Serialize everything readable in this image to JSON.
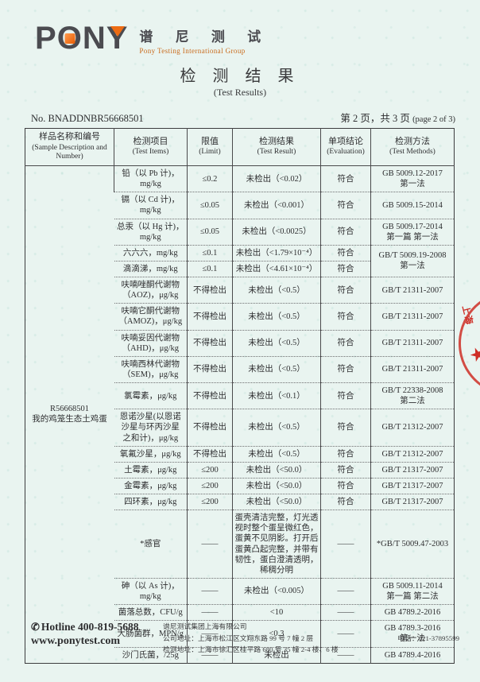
{
  "header": {
    "logo_text": "PONY",
    "logo_cn": "谱 尼 测 试",
    "logo_en": "Pony Testing International Group",
    "title_cn": "检 测 结 果",
    "title_en": "(Test Results)",
    "report_no": "No. BNADDNBR56668501",
    "page_info_cn": "第 2 页，共 3 页 ",
    "page_info_en": "(page 2 of 3)"
  },
  "table": {
    "headers": [
      {
        "cn": "样品名称和编号",
        "en": "(Sample Description and Number)"
      },
      {
        "cn": "检测项目",
        "en": "(Test Items)"
      },
      {
        "cn": "限值",
        "en": "(Limit)"
      },
      {
        "cn": "检测结果",
        "en": "(Test Result)"
      },
      {
        "cn": "单项结论",
        "en": "(Evaluation)"
      },
      {
        "cn": "检测方法",
        "en": "(Test Methods)"
      }
    ],
    "sample": "R56668501\n我的鸡笼生态土鸡蛋",
    "rows": [
      {
        "item": "铅（以 Pb 计)，\nmg/kg",
        "limit": "≤0.2",
        "result": "未检出（<0.02）",
        "evaluation": "符合",
        "method": "GB 5009.12-2017\n第一法"
      },
      {
        "item": "镉（以 Cd 计)，\nmg/kg",
        "limit": "≤0.05",
        "result": "未检出（<0.001）",
        "evaluation": "符合",
        "method": "GB 5009.15-2014"
      },
      {
        "item": "总汞（以 Hg 计)，\nmg/kg",
        "limit": "≤0.05",
        "result": "未检出（<0.0025）",
        "evaluation": "符合",
        "method": "GB 5009.17-2014\n第一篇 第一法"
      },
      {
        "item": "六六六，mg/kg",
        "limit": "≤0.1",
        "result": "未检出（<1.79×10⁻⁴）",
        "evaluation": "符合",
        "method": "GB/T 5009.19-2008\n第一法",
        "method_rowspan": 2
      },
      {
        "item": "滴滴涕，mg/kg",
        "limit": "≤0.1",
        "result": "未检出（<4.61×10⁻⁴）",
        "evaluation": "符合",
        "method": null
      },
      {
        "item": "呋喃唑酮代谢物\n（AOZ)，μg/kg",
        "limit": "不得检出",
        "result": "未检出（<0.5）",
        "evaluation": "符合",
        "method": "GB/T 21311-2007"
      },
      {
        "item": "呋喃它酮代谢物\n（AMOZ)，μg/kg",
        "limit": "不得检出",
        "result": "未检出（<0.5）",
        "evaluation": "符合",
        "method": "GB/T 21311-2007"
      },
      {
        "item": "呋喃妥因代谢物\n（AHD)，μg/kg",
        "limit": "不得检出",
        "result": "未检出（<0.5）",
        "evaluation": "符合",
        "method": "GB/T 21311-2007"
      },
      {
        "item": "呋喃西林代谢物\n（SEM)，μg/kg",
        "limit": "不得检出",
        "result": "未检出（<0.5）",
        "evaluation": "符合",
        "method": "GB/T 21311-2007"
      },
      {
        "item": "氯霉素，μg/kg",
        "limit": "不得检出",
        "result": "未检出（<0.1）",
        "evaluation": "符合",
        "method": "GB/T 22338-2008\n第二法"
      },
      {
        "item": "恩诺沙星(以恩诺\n沙星与环丙沙星\n之和计)，μg/kg",
        "limit": "不得检出",
        "result": "未检出（<0.5）",
        "evaluation": "符合",
        "method": "GB/T 21312-2007"
      },
      {
        "item": "氧氟沙星，μg/kg",
        "limit": "不得检出",
        "result": "未检出（<0.5）",
        "evaluation": "符合",
        "method": "GB/T 21312-2007"
      },
      {
        "item": "土霉素，μg/kg",
        "limit": "≤200",
        "result": "未检出（<50.0）",
        "evaluation": "符合",
        "method": "GB/T 21317-2007"
      },
      {
        "item": "金霉素，μg/kg",
        "limit": "≤200",
        "result": "未检出（<50.0）",
        "evaluation": "符合",
        "method": "GB/T 21317-2007"
      },
      {
        "item": "四环素，μg/kg",
        "limit": "≤200",
        "result": "未检出（<50.0）",
        "evaluation": "符合",
        "method": "GB/T 21317-2007"
      },
      {
        "item": "*感官",
        "limit": "——",
        "result": "蛋壳清洁完整，灯光透视时整个蛋呈微红色，蛋黄不见阴影。打开后蛋黄凸起完整，并带有韧性，蛋白澄清透明，稀稠分明",
        "evaluation": "——",
        "method": "*GB/T 5009.47-2003"
      },
      {
        "item": "砷（以 As 计)，\nmg/kg",
        "limit": "——",
        "result": "未检出（<0.005）",
        "evaluation": "——",
        "method": "GB 5009.11-2014\n第一篇 第二法"
      },
      {
        "item": "菌落总数，CFU/g",
        "limit": "——",
        "result": "<10",
        "evaluation": "——",
        "method": "GB 4789.2-2016"
      },
      {
        "item": "大肠菌群，MPN/g",
        "limit": "——",
        "result": "<0.3",
        "evaluation": "——",
        "method": "GB 4789.3-2016\n第一法"
      },
      {
        "item": "沙门氏菌，/25g",
        "limit": "——",
        "result": "未检出",
        "evaluation": "——",
        "method": "GB 4789.4-2016"
      }
    ]
  },
  "stamp": {
    "fragments": [
      "上海",
      "★",
      "IN"
    ]
  },
  "footer": {
    "phone_icon": "✆",
    "hotline": "Hotline 400-819-5688",
    "website": "www.ponytest.com",
    "company": "谱尼测试集团上海有限公司",
    "address1": "公司地址：上海市松江区文翔东路 99 号 7 幢 2 层",
    "address2": "检测地址：上海市徐汇区桂平路 680 号 35 幢 2-4 楼、6 楼",
    "phone": "电话：021-37895599"
  },
  "colors": {
    "accent_orange": "#ee6c13",
    "stamp_red": "#ce2e26",
    "page_bg": "#e9f4f0"
  }
}
